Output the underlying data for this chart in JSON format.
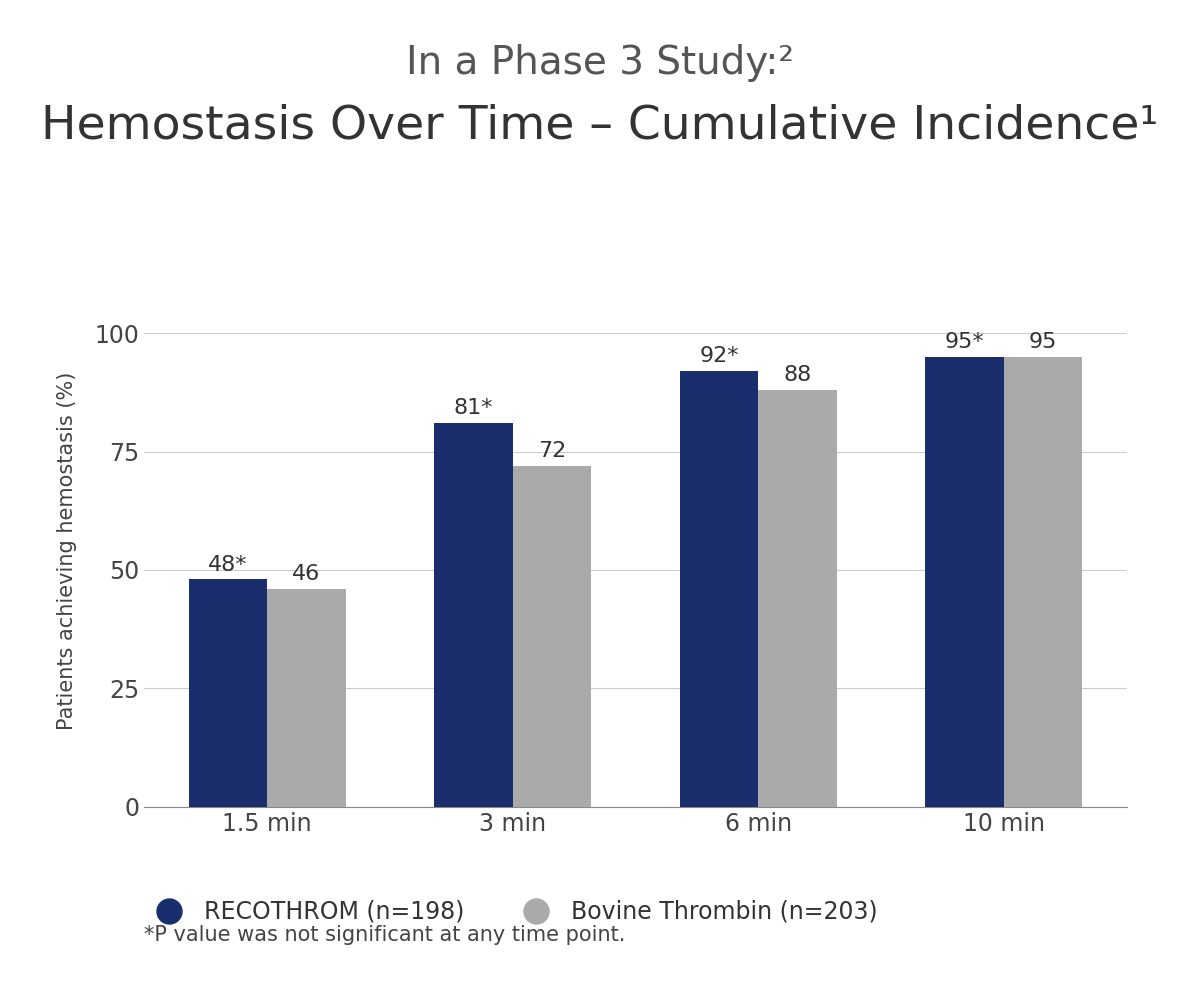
{
  "title_line1": "In a Phase 3 Study:²",
  "title_line2": "Hemostasis Over Time – Cumulative Incidence¹",
  "ylabel": "Patients achieving hemostasis (%)",
  "categories": [
    "1.5 min",
    "3 min",
    "6 min",
    "10 min"
  ],
  "recothrom_values": [
    48,
    81,
    92,
    95
  ],
  "bovine_values": [
    46,
    72,
    88,
    95
  ],
  "recothrom_labels": [
    "48*",
    "81*",
    "92*",
    "95*"
  ],
  "bovine_labels": [
    "46",
    "72",
    "88",
    "95"
  ],
  "recothrom_color": "#1a2e6e",
  "bovine_color": "#aaaaaa",
  "ylim": [
    0,
    108
  ],
  "yticks": [
    0,
    25,
    50,
    75,
    100
  ],
  "bar_width": 0.32,
  "legend_recothrom": "RECOTHROM (n=198)",
  "legend_bovine": "Bovine Thrombin (n=203)",
  "footnote": "*P value was not significant at any time point.",
  "background_color": "#ffffff",
  "title_color": "#555555",
  "label_fontsize": 15,
  "title_fontsize1": 28,
  "title_fontsize2": 34,
  "bar_label_fontsize": 16,
  "legend_fontsize": 17,
  "tick_fontsize": 17,
  "footnote_fontsize": 15
}
